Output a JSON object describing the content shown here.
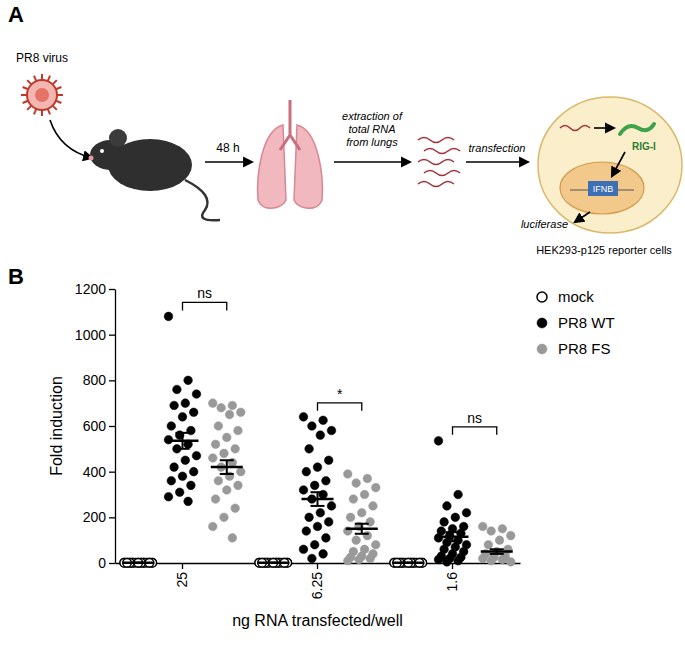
{
  "panels": [
    "A",
    "B"
  ],
  "diagram": {
    "virus": "PR8 virus",
    "time": "48 h",
    "extraction": [
      "extraction of",
      "total RNA",
      "from lungs"
    ],
    "transfection": "transfection",
    "sensor": "RIG-I",
    "gene": "IFNB",
    "reporter": "luciferase",
    "cells": "HEK293-p125 reporter cells"
  },
  "chart_data": {
    "type": "scatter",
    "x_label": "ng RNA transfected/well",
    "y_label": "Fold induction",
    "categories": [
      "25",
      "6.25",
      "1.6"
    ],
    "ylim": [
      0,
      1200
    ],
    "yticks": [
      0,
      200,
      400,
      600,
      800,
      1000,
      1200
    ],
    "grid": false,
    "legend": "right",
    "series": [
      {
        "name": "mock",
        "color": "#000000",
        "marker": "open",
        "values": [
          [
            1,
            1,
            1,
            1,
            1,
            1,
            1,
            1,
            1,
            1,
            1,
            1,
            1,
            1,
            1,
            1,
            1,
            1,
            1,
            1
          ],
          [
            1,
            1,
            1,
            1,
            1,
            1,
            1,
            1,
            1,
            1,
            1,
            1,
            1,
            1,
            1,
            1,
            1,
            1,
            1,
            1
          ],
          [
            1,
            1,
            1,
            1,
            1,
            1,
            1,
            1,
            1,
            1,
            1,
            1,
            1,
            1,
            1,
            1,
            1,
            1,
            1,
            1
          ]
        ],
        "mean": [
          1,
          1,
          1
        ],
        "sem": [
          0,
          0,
          0
        ]
      },
      {
        "name": "PR8 WT",
        "color": "#000000",
        "marker": "filled",
        "values": [
          [
            1080,
            800,
            760,
            740,
            700,
            690,
            660,
            640,
            600,
            580,
            560,
            540,
            520,
            500,
            470,
            450,
            420,
            400,
            380,
            360,
            340,
            310,
            290,
            270
          ],
          [
            640,
            625,
            600,
            580,
            560,
            500,
            450,
            420,
            400,
            360,
            340,
            320,
            300,
            280,
            250,
            220,
            200,
            180,
            160,
            140,
            110,
            80,
            60,
            40,
            20
          ],
          [
            535,
            300,
            250,
            220,
            200,
            180,
            160,
            150,
            140,
            130,
            120,
            110,
            100,
            90,
            80,
            70,
            60,
            50,
            40,
            30,
            25,
            20,
            15,
            10,
            5
          ]
        ],
        "mean": [
          535,
          280,
          115
        ],
        "sem": [
          35,
          30,
          20
        ]
      },
      {
        "name": "PR8 FS",
        "color": "#999999",
        "marker": "filled",
        "values": [
          [
            700,
            690,
            680,
            660,
            650,
            600,
            580,
            550,
            520,
            500,
            480,
            460,
            440,
            420,
            400,
            380,
            360,
            340,
            320,
            280,
            240,
            200,
            160,
            110
          ],
          [
            390,
            370,
            350,
            330,
            300,
            280,
            250,
            220,
            200,
            180,
            160,
            140,
            120,
            100,
            80,
            60,
            50,
            40,
            30,
            25,
            20,
            15,
            10
          ],
          [
            160,
            150,
            140,
            120,
            100,
            80,
            60,
            50,
            40,
            30,
            25,
            20,
            15,
            10,
            5
          ]
        ],
        "mean": [
          420,
          150,
          50
        ],
        "sem": [
          30,
          22,
          10
        ]
      }
    ],
    "annotations": [
      {
        "category": "25",
        "between": [
          "PR8 WT",
          "PR8 FS"
        ],
        "label": "ns"
      },
      {
        "category": "6.25",
        "between": [
          "PR8 WT",
          "PR8 FS"
        ],
        "label": "*"
      },
      {
        "category": "1.6",
        "between": [
          "PR8 WT",
          "PR8 FS"
        ],
        "label": "ns"
      }
    ]
  }
}
